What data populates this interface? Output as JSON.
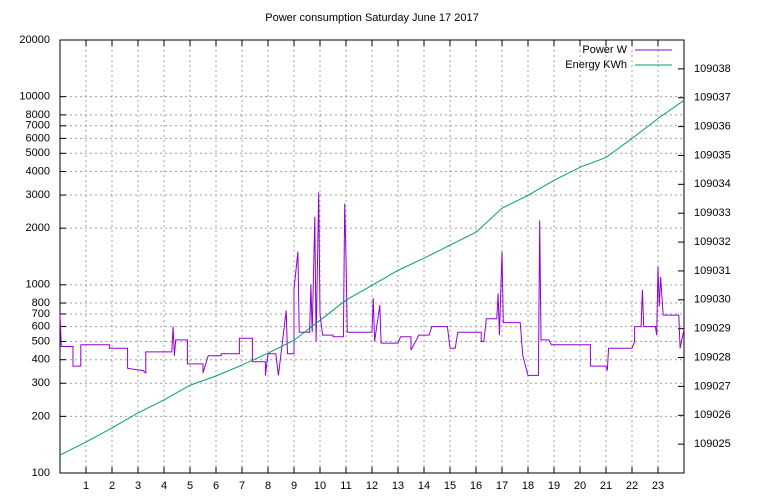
{
  "chart_data": {
    "type": "line",
    "title": "Power consumption Saturday June 17 2017",
    "xlim": [
      0,
      24
    ],
    "xticks": [
      1,
      2,
      3,
      4,
      5,
      6,
      7,
      8,
      9,
      10,
      11,
      12,
      13,
      14,
      15,
      16,
      17,
      18,
      19,
      20,
      21,
      22,
      23
    ],
    "ylim": [
      100,
      20000
    ],
    "ylog": true,
    "yticks": [
      100,
      200,
      300,
      400,
      500,
      600,
      700,
      800,
      1000,
      2000,
      3000,
      4000,
      5000,
      6000,
      7000,
      8000,
      10000,
      20000
    ],
    "y2lim": [
      109024,
      109039
    ],
    "y2ticks": [
      109025,
      109026,
      109027,
      109028,
      109029,
      109030,
      109031,
      109032,
      109033,
      109034,
      109035,
      109036,
      109037,
      109038
    ],
    "grid": true,
    "legend": "top right",
    "series": [
      {
        "name": "Power W",
        "color": "#9400d3",
        "x": [
          0,
          0.05,
          0.5,
          0.5,
          0.8,
          0.8,
          1.9,
          1.9,
          2.6,
          2.6,
          3.2,
          3.3,
          3.3,
          4.3,
          4.35,
          4.4,
          4.45,
          4.9,
          4.9,
          5.5,
          5.5,
          5.7,
          6.2,
          6.2,
          6.9,
          6.9,
          7.4,
          7.4,
          7.9,
          7.9,
          8.0,
          8.3,
          8.4,
          8.5,
          8.7,
          8.75,
          9.0,
          9.0,
          9.15,
          9.2,
          9.6,
          9.65,
          9.7,
          9.8,
          9.85,
          9.95,
          10.0,
          10.1,
          10.5,
          10.5,
          10.9,
          10.95,
          11.0,
          11.05,
          12.0,
          12.05,
          12.1,
          12.3,
          12.35,
          13.0,
          13.1,
          13.5,
          13.5,
          13.8,
          14.2,
          14.3,
          14.9,
          15.0,
          15.2,
          15.3,
          16.2,
          16.2,
          16.3,
          16.4,
          16.8,
          16.85,
          16.9,
          17.0,
          17.05,
          17.7,
          17.8,
          18.0,
          18.4,
          18.45,
          18.5,
          18.8,
          18.9,
          20.4,
          20.4,
          21.0,
          21.05,
          21.1,
          22.0,
          22.1,
          22.1,
          22.35,
          22.4,
          22.45,
          22.9,
          22.95,
          23.0,
          23.05,
          23.1,
          23.2,
          23.8,
          23.85,
          24
        ],
        "values": [
          700,
          470,
          470,
          370,
          370,
          480,
          480,
          460,
          460,
          360,
          350,
          340,
          440,
          440,
          600,
          420,
          510,
          510,
          380,
          380,
          340,
          420,
          420,
          430,
          430,
          520,
          520,
          390,
          390,
          330,
          430,
          430,
          330,
          430,
          730,
          430,
          430,
          950,
          1500,
          560,
          560,
          1000,
          560,
          2300,
          500,
          3100,
          700,
          540,
          540,
          530,
          530,
          2700,
          1400,
          560,
          560,
          850,
          500,
          780,
          490,
          490,
          530,
          530,
          450,
          540,
          540,
          600,
          600,
          460,
          460,
          560,
          560,
          500,
          500,
          660,
          660,
          900,
          540,
          1500,
          630,
          630,
          420,
          330,
          330,
          2200,
          510,
          510,
          480,
          480,
          370,
          370,
          350,
          460,
          460,
          500,
          600,
          600,
          940,
          600,
          600,
          540,
          1250,
          770,
          1100,
          690,
          690,
          460,
          580
        ]
      },
      {
        "name": "Energy KWh",
        "color": "#009e73",
        "axis": "y2",
        "x": [
          0,
          1,
          2,
          3,
          4,
          5,
          6,
          7,
          8,
          9,
          10,
          11,
          12,
          13,
          14,
          15,
          16,
          17,
          18,
          19,
          20,
          21,
          22,
          23,
          24
        ],
        "values": [
          109024.62,
          109025.07,
          109025.56,
          109026.08,
          109026.53,
          109027.04,
          109027.36,
          109027.74,
          109028.15,
          109028.6,
          109029.29,
          109029.99,
          109030.5,
          109031.02,
          109031.44,
          109031.89,
          109032.34,
          109033.17,
          109033.62,
          109034.14,
          109034.59,
          109034.93,
          109035.59,
          109036.28,
          109036.91
        ]
      }
    ]
  }
}
